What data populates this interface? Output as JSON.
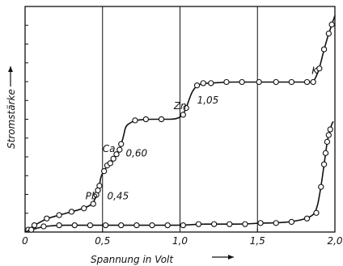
{
  "chart_data": {
    "type": "line",
    "xlabel": "Spannung in Volt",
    "ylabel": "Stromstärke",
    "xlim": [
      0,
      2.0
    ],
    "ylim": [
      0,
      1.0
    ],
    "x_ticks": [
      "0",
      "0,5",
      "1,0",
      "1,5",
      "2,0"
    ],
    "x_tick_values": [
      0,
      0.5,
      1.0,
      1.5,
      2.0
    ],
    "grid_vertical": true,
    "series": [
      {
        "points": [
          [
            0.02,
            0.01
          ],
          [
            0.06,
            0.03
          ],
          [
            0.14,
            0.06
          ],
          [
            0.22,
            0.075
          ],
          [
            0.3,
            0.09
          ],
          [
            0.38,
            0.105
          ],
          [
            0.44,
            0.125
          ],
          [
            0.46,
            0.165
          ],
          [
            0.47,
            0.185
          ],
          [
            0.48,
            0.205
          ],
          [
            0.49,
            0.25
          ],
          [
            0.51,
            0.27
          ],
          [
            0.53,
            0.295
          ],
          [
            0.55,
            0.305
          ],
          [
            0.57,
            0.325
          ],
          [
            0.59,
            0.345
          ],
          [
            0.61,
            0.365
          ],
          [
            0.62,
            0.39
          ],
          [
            0.63,
            0.41
          ],
          [
            0.64,
            0.44
          ],
          [
            0.65,
            0.47
          ],
          [
            0.68,
            0.485
          ],
          [
            0.71,
            0.495
          ],
          [
            0.78,
            0.5
          ],
          [
            0.88,
            0.5
          ],
          [
            0.98,
            0.5
          ],
          [
            1.02,
            0.52
          ],
          [
            1.04,
            0.55
          ],
          [
            1.06,
            0.59
          ],
          [
            1.08,
            0.625
          ],
          [
            1.11,
            0.65
          ],
          [
            1.15,
            0.66
          ],
          [
            1.2,
            0.66
          ],
          [
            1.3,
            0.665
          ],
          [
            1.4,
            0.665
          ],
          [
            1.51,
            0.665
          ],
          [
            1.62,
            0.665
          ],
          [
            1.72,
            0.665
          ],
          [
            1.82,
            0.665
          ],
          [
            1.86,
            0.665
          ],
          [
            1.88,
            0.69
          ],
          [
            1.9,
            0.725
          ],
          [
            1.93,
            0.81
          ],
          [
            1.96,
            0.88
          ],
          [
            1.98,
            0.92
          ],
          [
            2.0,
            0.96
          ]
        ],
        "markers": [
          [
            0.02,
            0.01
          ],
          [
            0.06,
            0.03
          ],
          [
            0.14,
            0.06
          ],
          [
            0.22,
            0.075
          ],
          [
            0.3,
            0.09
          ],
          [
            0.38,
            0.105
          ],
          [
            0.44,
            0.125
          ],
          [
            0.46,
            0.165
          ],
          [
            0.47,
            0.185
          ],
          [
            0.48,
            0.205
          ],
          [
            0.51,
            0.27
          ],
          [
            0.53,
            0.295
          ],
          [
            0.55,
            0.305
          ],
          [
            0.57,
            0.325
          ],
          [
            0.59,
            0.345
          ],
          [
            0.61,
            0.365
          ],
          [
            0.62,
            0.39
          ],
          [
            0.71,
            0.495
          ],
          [
            0.78,
            0.5
          ],
          [
            0.88,
            0.5
          ],
          [
            1.02,
            0.52
          ],
          [
            1.04,
            0.55
          ],
          [
            1.11,
            0.65
          ],
          [
            1.15,
            0.66
          ],
          [
            1.2,
            0.66
          ],
          [
            1.3,
            0.665
          ],
          [
            1.4,
            0.665
          ],
          [
            1.51,
            0.665
          ],
          [
            1.62,
            0.665
          ],
          [
            1.72,
            0.665
          ],
          [
            1.82,
            0.665
          ],
          [
            1.86,
            0.665
          ],
          [
            1.9,
            0.725
          ],
          [
            1.93,
            0.81
          ],
          [
            1.96,
            0.88
          ],
          [
            1.98,
            0.92
          ]
        ]
      },
      {
        "points": [
          [
            0.0,
            0.0
          ],
          [
            0.04,
            0.01
          ],
          [
            0.12,
            0.025
          ],
          [
            0.22,
            0.03
          ],
          [
            0.32,
            0.03
          ],
          [
            0.42,
            0.03
          ],
          [
            0.52,
            0.03
          ],
          [
            0.62,
            0.03
          ],
          [
            0.72,
            0.03
          ],
          [
            0.82,
            0.03
          ],
          [
            0.92,
            0.03
          ],
          [
            1.02,
            0.03
          ],
          [
            1.12,
            0.035
          ],
          [
            1.22,
            0.035
          ],
          [
            1.32,
            0.035
          ],
          [
            1.42,
            0.035
          ],
          [
            1.52,
            0.04
          ],
          [
            1.62,
            0.04
          ],
          [
            1.72,
            0.045
          ],
          [
            1.82,
            0.06
          ],
          [
            1.88,
            0.085
          ],
          [
            1.91,
            0.2
          ],
          [
            1.93,
            0.3
          ],
          [
            1.94,
            0.35
          ],
          [
            1.95,
            0.4
          ],
          [
            1.96,
            0.43
          ],
          [
            1.97,
            0.455
          ],
          [
            1.98,
            0.48
          ],
          [
            1.99,
            0.49
          ]
        ],
        "markers": [
          [
            0.04,
            0.01
          ],
          [
            0.12,
            0.025
          ],
          [
            0.22,
            0.03
          ],
          [
            0.32,
            0.03
          ],
          [
            0.42,
            0.03
          ],
          [
            0.52,
            0.03
          ],
          [
            0.62,
            0.03
          ],
          [
            0.72,
            0.03
          ],
          [
            0.82,
            0.03
          ],
          [
            0.92,
            0.03
          ],
          [
            1.02,
            0.03
          ],
          [
            1.12,
            0.035
          ],
          [
            1.22,
            0.035
          ],
          [
            1.32,
            0.035
          ],
          [
            1.42,
            0.035
          ],
          [
            1.52,
            0.04
          ],
          [
            1.62,
            0.04
          ],
          [
            1.72,
            0.045
          ],
          [
            1.82,
            0.06
          ],
          [
            1.88,
            0.085
          ],
          [
            1.91,
            0.2
          ],
          [
            1.93,
            0.3
          ],
          [
            1.94,
            0.35
          ],
          [
            1.95,
            0.4
          ],
          [
            1.96,
            0.43
          ],
          [
            1.97,
            0.455
          ]
        ]
      }
    ],
    "annotations": [
      {
        "text": "Pb",
        "x": 0.39,
        "y": 0.145
      },
      {
        "text": "0,45",
        "x": 0.53,
        "y": 0.145
      },
      {
        "text": "Ca",
        "x": 0.5,
        "y": 0.355
      },
      {
        "text": "0,60",
        "x": 0.65,
        "y": 0.335
      },
      {
        "text": "Zn",
        "x": 0.96,
        "y": 0.545
      },
      {
        "text": "1,05",
        "x": 1.11,
        "y": 0.57
      },
      {
        "text": "K",
        "x": 1.85,
        "y": 0.7
      }
    ]
  }
}
